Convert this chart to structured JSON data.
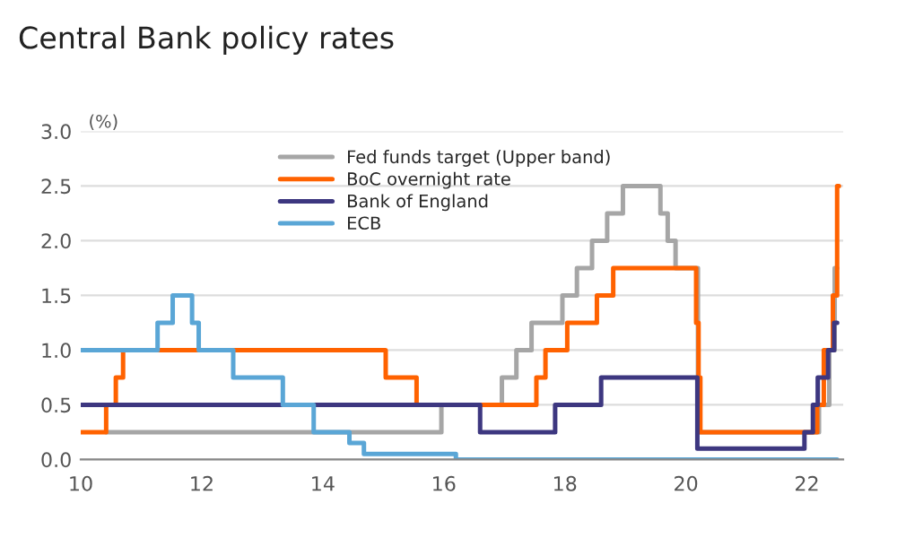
{
  "chart_data": {
    "type": "step",
    "title": "Central Bank policy rates",
    "ylabel": "(%)",
    "xlim": [
      10,
      22.6
    ],
    "xticks": [
      10,
      12,
      14,
      16,
      18,
      20,
      22
    ],
    "ylim": [
      0,
      3
    ],
    "yticks": [
      {
        "value": 0,
        "label": "0.0"
      },
      0.5,
      {
        "value": 1,
        "label": "1.0"
      },
      1.5,
      {
        "value": 2,
        "label": "2.0"
      },
      2.5,
      {
        "value": 3,
        "label": "3.0"
      }
    ],
    "grid": "y",
    "legend": "top",
    "series": [
      {
        "name": "Fed funds target (Upper band)",
        "color": "#a6a6a6",
        "x": [
          10.42,
          15.96,
          16.96,
          17.2,
          17.45,
          17.96,
          18.2,
          18.45,
          18.7,
          18.96,
          19.58,
          19.7,
          19.83,
          20.2,
          22.2,
          22.37,
          22.46,
          22.5
        ],
        "values": [
          0.25,
          0.5,
          0.75,
          1.0,
          1.25,
          1.5,
          1.75,
          2.0,
          2.25,
          2.5,
          2.25,
          2.0,
          1.75,
          0.25,
          0.5,
          1.0,
          1.75,
          1.75
        ]
      },
      {
        "name": "BoC overnight rate",
        "color": "#ff6200",
        "x": [
          10,
          10.42,
          10.58,
          10.7,
          15.04,
          15.55,
          17.53,
          17.68,
          18.04,
          18.53,
          18.8,
          20.17,
          20.21,
          20.24,
          22.17,
          22.28,
          22.43,
          22.5,
          22.53
        ],
        "values": [
          0.25,
          0.5,
          0.75,
          1.0,
          0.75,
          0.5,
          0.75,
          1.0,
          1.25,
          1.5,
          1.75,
          1.25,
          0.75,
          0.25,
          0.5,
          1.0,
          1.5,
          2.5,
          2.5
        ]
      },
      {
        "name": "Bank of England",
        "color": "#3d3780",
        "x": [
          10,
          16.6,
          17.84,
          18.6,
          20.19,
          21.96,
          22.1,
          22.18,
          22.35,
          22.45,
          22.5
        ],
        "values": [
          0.5,
          0.25,
          0.5,
          0.75,
          0.1,
          0.25,
          0.5,
          0.75,
          1.0,
          1.25,
          1.25
        ]
      },
      {
        "name": "ECB",
        "color": "#5aa6d6",
        "x": [
          10,
          11.27,
          11.52,
          11.84,
          11.95,
          12.52,
          13.34,
          13.85,
          14.44,
          14.68,
          16.2,
          22.5
        ],
        "values": [
          1.0,
          1.25,
          1.5,
          1.25,
          1.0,
          0.75,
          0.5,
          0.25,
          0.15,
          0.05,
          0.0,
          0.0
        ]
      }
    ]
  }
}
